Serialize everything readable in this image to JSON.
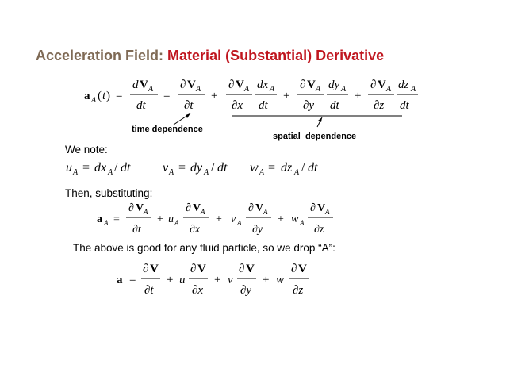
{
  "title": {
    "part1": "Acceleration Field: ",
    "part2": "Material (Substantial) Derivative"
  },
  "labels": {
    "time_dependence": "time dependence",
    "spatial_dependence": "spatial  dependence"
  },
  "text": {
    "we_note": "We note:",
    "then_substituting": "Then, substituting:",
    "good_for_any": "The above is good for any fluid particle, so we drop “A”:"
  },
  "equations": {
    "main": "a_A(t) = dV_A/dt = ∂V_A/∂t + ∂V_A/∂x dx_A/dt + ∂V_A/∂y dy_A/dt + ∂V_A/∂z dz_A/dt",
    "velocities": "u_A = dx_A/dt   v_A = dy_A/dt   w_A = dz_A/dt",
    "substituted": "a_A = ∂V_A/∂t + u_A ∂V_A/∂x + v_A ∂V_A/∂y + w_A ∂V_A/∂z",
    "final": "a = ∂V/∂t + u ∂V/∂x + v ∂V/∂y + w ∂V/∂z"
  }
}
